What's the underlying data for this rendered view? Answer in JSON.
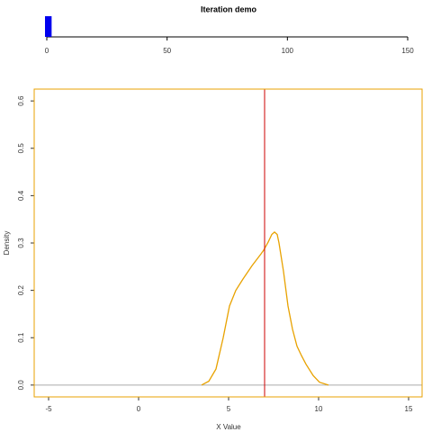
{
  "chart_data": [
    {
      "type": "progress",
      "title": "Iteration demo",
      "values": [
        2
      ],
      "color": "#0000ee",
      "xlim": [
        0,
        150
      ],
      "xticks": [
        0,
        50,
        100,
        150
      ]
    },
    {
      "type": "line",
      "x_label": "X Value",
      "y_label": "Density",
      "x": [
        3.5,
        3.9,
        4.3,
        4.7,
        5.05,
        5.4,
        5.8,
        6.3,
        6.8,
        6.95,
        7.2,
        7.4,
        7.55,
        7.7,
        7.8,
        8.05,
        8.3,
        8.55,
        8.8,
        9.05,
        9.3,
        9.7,
        10.05,
        10.55
      ],
      "series": [
        {
          "name": "Density",
          "color": "#e8a200",
          "values": [
            0,
            0.008,
            0.034,
            0.1,
            0.167,
            0.2,
            0.224,
            0.252,
            0.277,
            0.285,
            0.302,
            0.318,
            0.323,
            0.318,
            0.3,
            0.24,
            0.167,
            0.118,
            0.082,
            0.062,
            0.044,
            0.02,
            0.006,
            0
          ]
        }
      ],
      "vline": 7,
      "vline_color": "#cc0000",
      "zero_line": true,
      "frame_color": "#e8a200",
      "xlim": [
        -5.8,
        15.75
      ],
      "xticks": [
        -5,
        0,
        5,
        10,
        15
      ],
      "ylim": [
        -0.025,
        0.625
      ],
      "yticks": [
        {
          "value": 0,
          "label": "0.0"
        },
        0.1,
        0.2,
        0.3,
        0.4,
        0.5,
        0.6
      ]
    }
  ]
}
